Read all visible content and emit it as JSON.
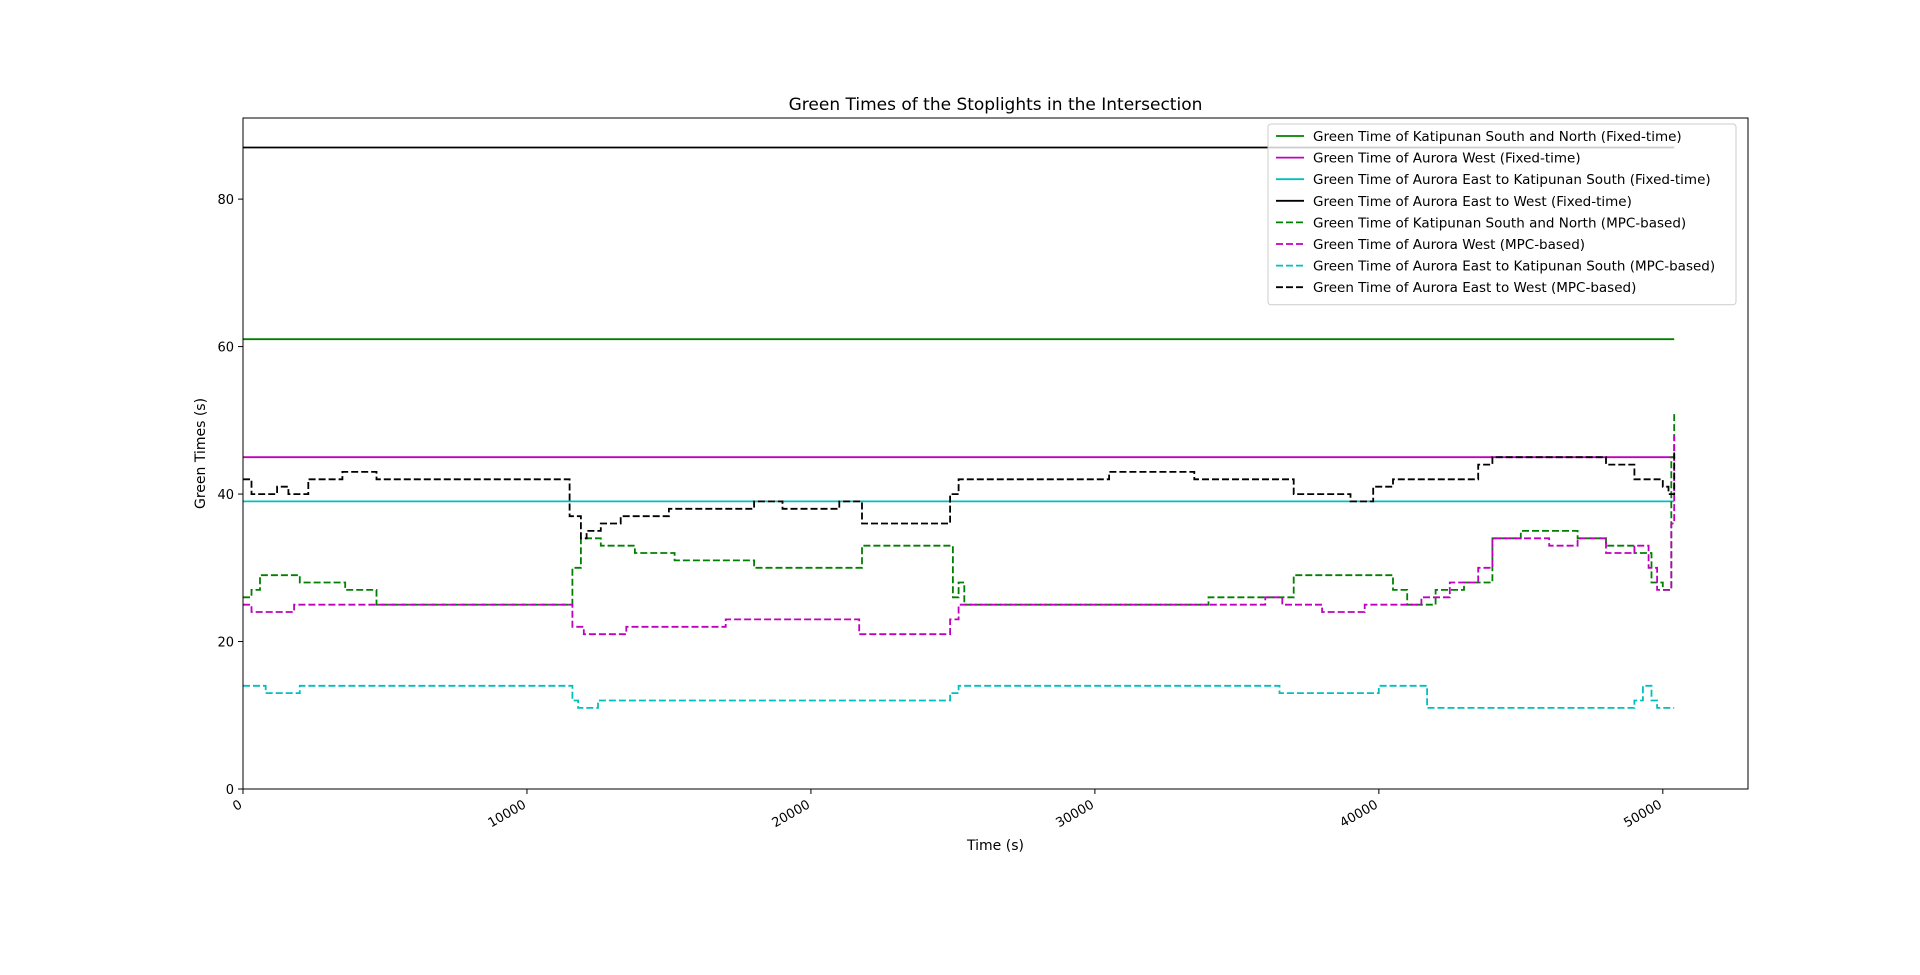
{
  "chart_data": {
    "type": "line",
    "title": "Green Times of the Stoplights in the Intersection",
    "xlabel": "Time (s)",
    "ylabel": "Green Times (s)",
    "xlim": [
      0,
      53000
    ],
    "ylim": [
      0,
      91
    ],
    "xticks": [
      0,
      10000,
      20000,
      30000,
      40000,
      50000
    ],
    "yticks": [
      0,
      20,
      40,
      60,
      80
    ],
    "grid": false,
    "legend_position": "upper-right",
    "series": [
      {
        "name": "Green Time of Katipunan South and North (Fixed-time)",
        "color": "#008000",
        "dash": "solid",
        "x": [
          0,
          50400
        ],
        "y": [
          61,
          61
        ]
      },
      {
        "name": "Green Time of Aurora West (Fixed-time)",
        "color": "#bf00bf",
        "dash": "solid",
        "x": [
          0,
          50400
        ],
        "y": [
          45,
          45
        ]
      },
      {
        "name": "Green Time of Aurora East to Katipunan South (Fixed-time)",
        "color": "#00bfbf",
        "dash": "solid",
        "x": [
          0,
          50400
        ],
        "y": [
          39,
          39
        ]
      },
      {
        "name": "Green Time of Aurora East to West (Fixed-time)",
        "color": "#000000",
        "dash": "solid",
        "x": [
          0,
          50400
        ],
        "y": [
          87,
          87
        ]
      },
      {
        "name": "Green Time of Katipunan South and North (MPC-based)",
        "color": "#008000",
        "dash": "dashed",
        "x": [
          0,
          300,
          600,
          1500,
          2000,
          2600,
          3600,
          4700,
          11300,
          11600,
          11900,
          12600,
          13800,
          15200,
          16500,
          18000,
          19500,
          21000,
          21800,
          22500,
          24600,
          25000,
          25200,
          25400,
          33500,
          34000,
          36200,
          37000,
          38500,
          39500,
          40500,
          41000,
          42000,
          43000,
          44000,
          45000,
          46000,
          47000,
          48000,
          49000,
          49600,
          50000,
          50200,
          50300,
          50400
        ],
        "y": [
          26,
          27,
          29,
          29,
          28,
          28,
          27,
          25,
          25,
          30,
          34,
          33,
          32,
          31,
          31,
          30,
          30,
          30,
          33,
          33,
          33,
          26,
          28,
          25,
          25,
          26,
          26,
          29,
          29,
          29,
          27,
          25,
          27,
          28,
          34,
          35,
          35,
          34,
          33,
          32,
          28,
          27,
          27,
          45,
          51
        ]
      },
      {
        "name": "Green Time of Aurora West (MPC-based)",
        "color": "#bf00bf",
        "dash": "dashed",
        "x": [
          0,
          300,
          1000,
          1800,
          2500,
          4700,
          11300,
          11600,
          12000,
          13500,
          15000,
          17000,
          19000,
          21000,
          21700,
          24600,
          24900,
          25200,
          33500,
          36000,
          36600,
          38000,
          39500,
          40500,
          41500,
          42500,
          43500,
          44000,
          45000,
          46000,
          47000,
          48000,
          49000,
          49500,
          49800,
          50100,
          50200,
          50300,
          50400
        ],
        "y": [
          25,
          24,
          24,
          25,
          25,
          25,
          25,
          22,
          21,
          22,
          22,
          23,
          23,
          23,
          21,
          21,
          23,
          25,
          25,
          26,
          25,
          24,
          25,
          25,
          26,
          28,
          30,
          34,
          34,
          33,
          34,
          32,
          33,
          30,
          27,
          27,
          27,
          36,
          48
        ]
      },
      {
        "name": "Green Time of Aurora East to Katipunan South (MPC-based)",
        "color": "#00bfbf",
        "dash": "dashed",
        "x": [
          0,
          300,
          800,
          2000,
          4700,
          11300,
          11600,
          11800,
          12500,
          14000,
          15500,
          17000,
          18500,
          20000,
          21700,
          24600,
          24900,
          25200,
          36200,
          36500,
          40000,
          41500,
          41700,
          48800,
          49000,
          49300,
          49600,
          49800,
          50400
        ],
        "y": [
          14,
          14,
          13,
          14,
          14,
          14,
          12,
          11,
          12,
          12,
          12,
          12,
          12,
          12,
          12,
          12,
          13,
          14,
          14,
          13,
          14,
          14,
          11,
          11,
          12,
          14,
          12,
          11,
          11
        ]
      },
      {
        "name": "Green Time of Aurora East to West (MPC-based)",
        "color": "#000000",
        "dash": "dashed",
        "x": [
          0,
          300,
          600,
          1200,
          1600,
          2300,
          2800,
          3500,
          4700,
          11300,
          11500,
          11900,
          12100,
          12600,
          13300,
          14200,
          15000,
          16000,
          17000,
          18000,
          19000,
          20000,
          21000,
          21800,
          24700,
          24900,
          25200,
          29000,
          30500,
          33500,
          36000,
          37000,
          38000,
          39000,
          39800,
          40500,
          42000,
          43500,
          44000,
          45000,
          46000,
          47000,
          48000,
          49000,
          49500,
          50000,
          50200,
          50300,
          50400
        ],
        "y": [
          42,
          40,
          40,
          41,
          40,
          42,
          42,
          43,
          42,
          42,
          37,
          34,
          35,
          36,
          37,
          37,
          38,
          38,
          38,
          39,
          38,
          38,
          39,
          36,
          36,
          40,
          42,
          42,
          43,
          42,
          42,
          40,
          40,
          39,
          41,
          42,
          42,
          44,
          45,
          45,
          45,
          45,
          44,
          42,
          42,
          41,
          40,
          40,
          46
        ]
      }
    ]
  }
}
